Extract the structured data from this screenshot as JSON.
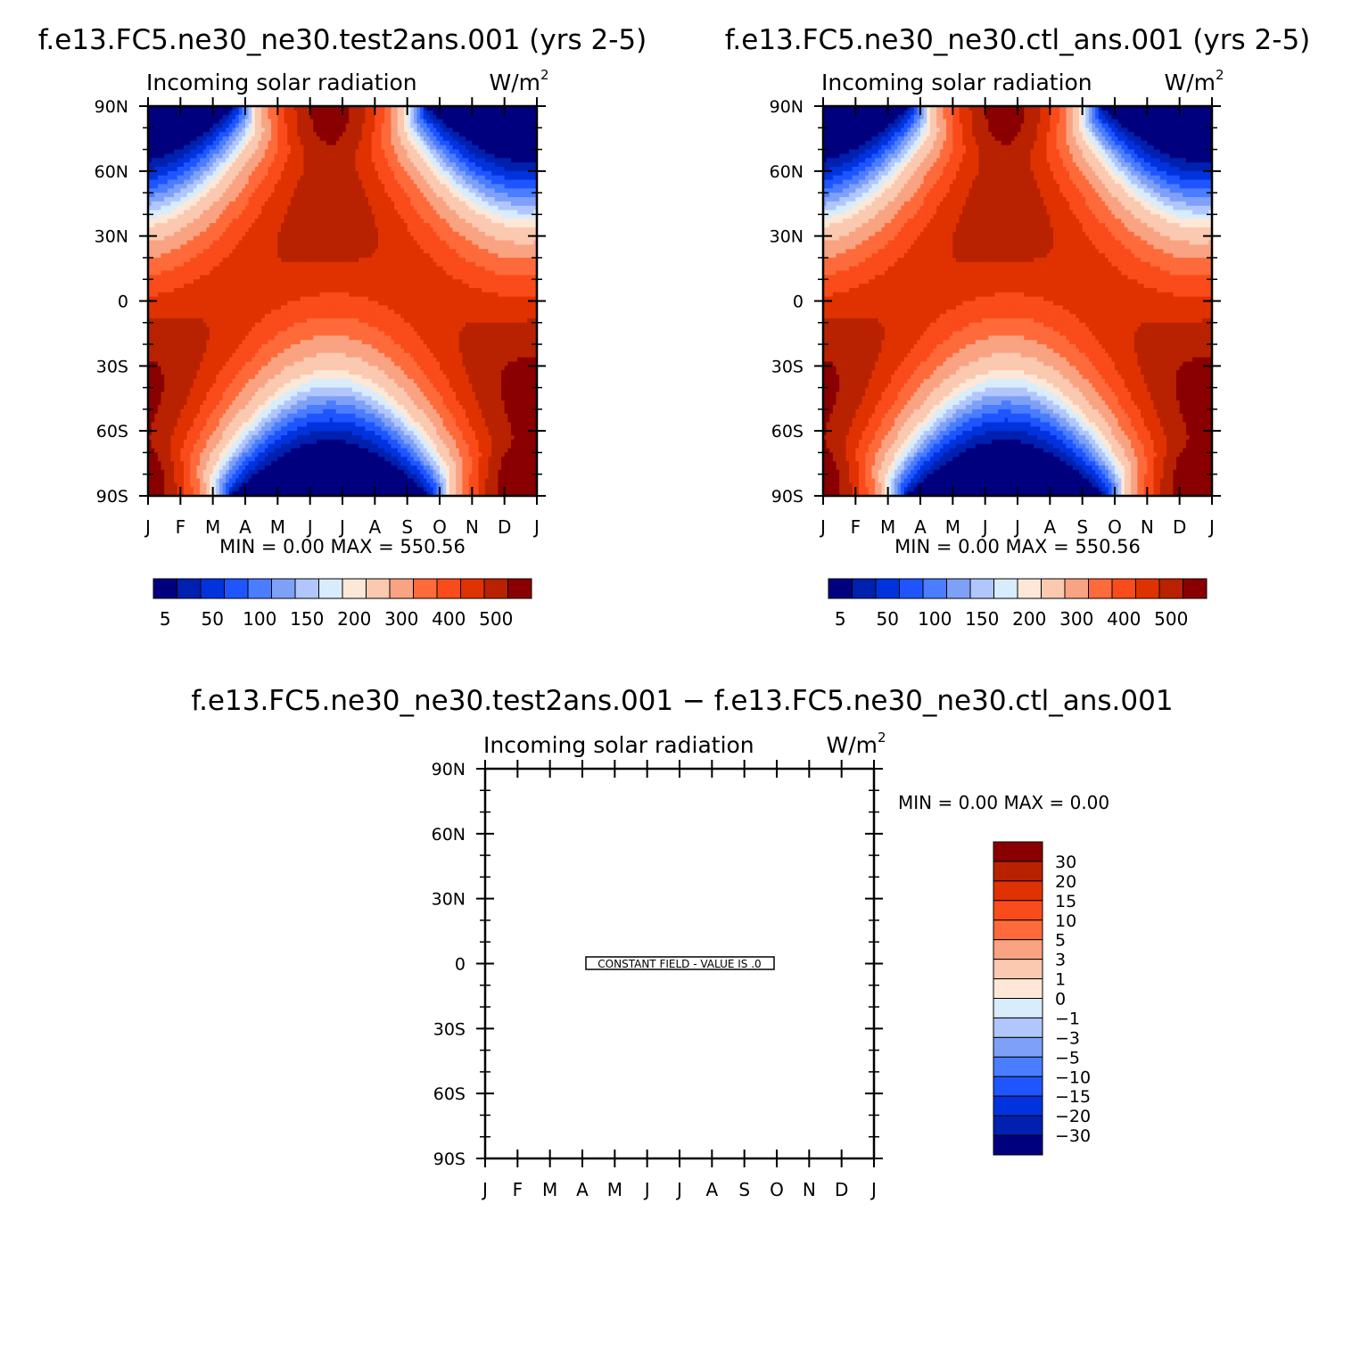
{
  "charts": [
    {
      "header": "f.e13.FC5.ne30_ne30.test2ans.001 (yrs 2-5)",
      "title": "Incoming solar radiation",
      "units": "W/m",
      "units_sup": "2",
      "stats": "MIN =    0.00  MAX =  550.56"
    },
    {
      "header": "f.e13.FC5.ne30_ne30.ctl_ans.001 (yrs 2-5)",
      "title": "Incoming solar radiation",
      "units": "W/m",
      "units_sup": "2",
      "stats": "MIN =    0.00  MAX =  550.56"
    },
    {
      "header": "f.e13.FC5.ne30_ne30.test2ans.001 − f.e13.FC5.ne30_ne30.ctl_ans.001",
      "title": "Incoming solar radiation",
      "units": "W/m",
      "units_sup": "2",
      "stats": "MIN =    0.00  MAX =    0.00",
      "note": "CONSTANT FIELD - VALUE IS .0"
    }
  ],
  "chart_data": [
    {
      "type": "heatmap",
      "x_months": [
        "J",
        "F",
        "M",
        "A",
        "M",
        "J",
        "J",
        "A",
        "S",
        "O",
        "N",
        "D",
        "J"
      ],
      "y_ticks": [
        "90N",
        "60N",
        "30N",
        "0",
        "30S",
        "60S",
        "90S"
      ],
      "ylim": [
        -90,
        90
      ],
      "levels": [
        5,
        25,
        50,
        75,
        100,
        125,
        150,
        175,
        200,
        250,
        300,
        350,
        400,
        450,
        500
      ],
      "colorbar_labels": [
        "5",
        "50",
        "100",
        "150",
        "200",
        "300",
        "400",
        "500"
      ],
      "colors": [
        "#00007f",
        "#0020b0",
        "#0033dd",
        "#1f55ff",
        "#4a7dff",
        "#7ea0f7",
        "#b0c6fc",
        "#d8ecfc",
        "#fde8d8",
        "#fbc8b0",
        "#f9a382",
        "#fe6a3a",
        "#fa4b1a",
        "#e03200",
        "#b82200",
        "#8a0000"
      ],
      "zonal_min": 0.0,
      "zonal_max": 550.56
    },
    {
      "type": "heatmap",
      "x_months": [
        "J",
        "F",
        "M",
        "A",
        "M",
        "J",
        "J",
        "A",
        "S",
        "O",
        "N",
        "D",
        "J"
      ],
      "y_ticks": [
        "90N",
        "60N",
        "30N",
        "0",
        "30S",
        "60S",
        "90S"
      ],
      "ylim": [
        -90,
        90
      ],
      "levels": [
        5,
        25,
        50,
        75,
        100,
        125,
        150,
        175,
        200,
        250,
        300,
        350,
        400,
        450,
        500
      ],
      "colorbar_labels": [
        "5",
        "50",
        "100",
        "150",
        "200",
        "300",
        "400",
        "500"
      ],
      "colors": [
        "#00007f",
        "#0020b0",
        "#0033dd",
        "#1f55ff",
        "#4a7dff",
        "#7ea0f7",
        "#b0c6fc",
        "#d8ecfc",
        "#fde8d8",
        "#fbc8b0",
        "#f9a382",
        "#fe6a3a",
        "#fa4b1a",
        "#e03200",
        "#b82200",
        "#8a0000"
      ],
      "zonal_min": 0.0,
      "zonal_max": 550.56
    },
    {
      "type": "heatmap",
      "x_months": [
        "J",
        "F",
        "M",
        "A",
        "M",
        "J",
        "J",
        "A",
        "S",
        "O",
        "N",
        "D",
        "J"
      ],
      "y_ticks": [
        "90N",
        "60N",
        "30N",
        "0",
        "30S",
        "60S",
        "90S"
      ],
      "ylim": [
        -90,
        90
      ],
      "constant_value": 0.0,
      "colorbar_labels": [
        "30",
        "20",
        "15",
        "10",
        "5",
        "3",
        "1",
        "0",
        "−1",
        "−3",
        "−5",
        "−10",
        "−15",
        "−20",
        "−30"
      ],
      "colors": [
        "#8a0000",
        "#b82200",
        "#e03200",
        "#fa4b1a",
        "#fe6a3a",
        "#f9a382",
        "#fbc8b0",
        "#fde8d8",
        "#d8ecfc",
        "#b0c6fc",
        "#7ea0f7",
        "#4a7dff",
        "#1f55ff",
        "#0033dd",
        "#0020b0",
        "#00007f"
      ]
    }
  ]
}
